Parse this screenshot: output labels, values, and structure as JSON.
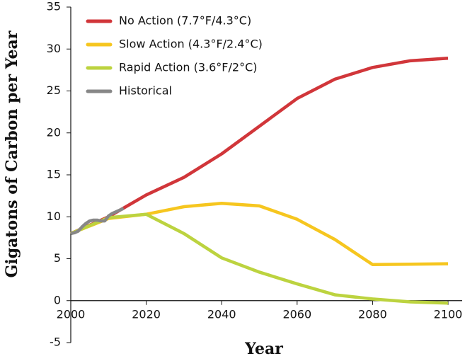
{
  "chart_data": {
    "type": "line",
    "ylabel": "Gigatons of Carbon per Year",
    "xlabel": "Year",
    "xlim": [
      2000,
      2100
    ],
    "xticks": [
      2000,
      2020,
      2040,
      2060,
      2080,
      2100
    ],
    "ylim": [
      -5,
      35
    ],
    "yticks": [
      -5,
      0,
      5,
      10,
      15,
      20,
      25,
      30,
      35
    ],
    "grid": false,
    "legend": "top-left",
    "series": [
      {
        "name": "No Action (7.7°F/4.3°C)",
        "color": "#d1363a",
        "x": [
          2000,
          2010,
          2020,
          2030,
          2040,
          2050,
          2060,
          2070,
          2080,
          2090,
          2100
        ],
        "values": [
          8,
          10,
          12.6,
          14.7,
          17.5,
          20.8,
          24.1,
          26.4,
          27.8,
          28.6,
          28.9
        ]
      },
      {
        "name": "Slow Action (4.3°F/2.4°C)",
        "color": "#f6c61f",
        "x": [
          2000,
          2010,
          2020,
          2030,
          2040,
          2050,
          2060,
          2070,
          2080,
          2090,
          2100
        ],
        "values": [
          8,
          9.8,
          10.3,
          11.2,
          11.6,
          11.3,
          9.7,
          7.3,
          4.3,
          4.35,
          4.4
        ]
      },
      {
        "name": "Rapid Action (3.6°F/2°C)",
        "color": "#bcd33f",
        "x": [
          2000,
          2010,
          2020,
          2030,
          2040,
          2050,
          2060,
          2070,
          2080,
          2090,
          2100
        ],
        "values": [
          8,
          9.9,
          10.3,
          8.0,
          5.1,
          3.4,
          2.0,
          0.7,
          0.2,
          -0.15,
          -0.3
        ]
      },
      {
        "name": "Historical",
        "color": "#878787",
        "x": [
          2000,
          2001,
          2002,
          2003,
          2004,
          2005,
          2006,
          2007,
          2008,
          2009,
          2010,
          2011,
          2012,
          2013,
          2014
        ],
        "values": [
          8.0,
          8.1,
          8.3,
          8.8,
          9.2,
          9.5,
          9.6,
          9.6,
          9.5,
          9.5,
          10.1,
          10.4,
          10.6,
          10.8,
          11.0
        ]
      }
    ]
  }
}
